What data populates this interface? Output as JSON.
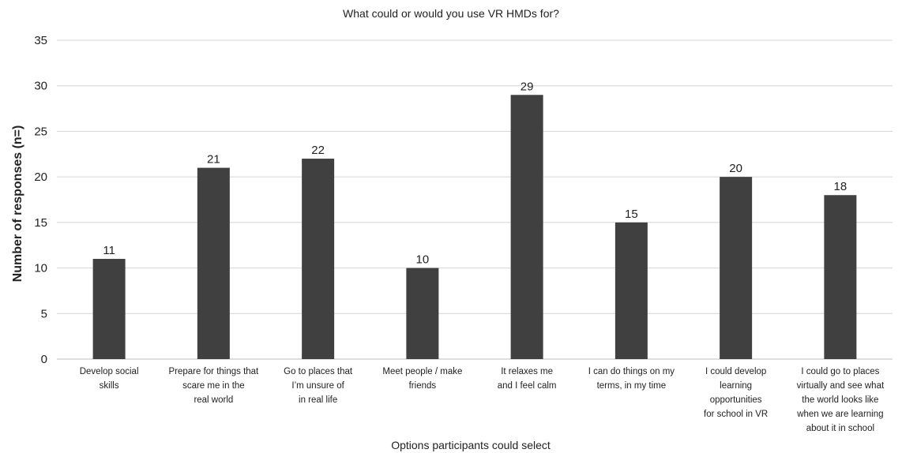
{
  "chart_data": {
    "type": "bar",
    "title": "What could or would you use VR HMDs for?",
    "xlabel": "Options participants could select",
    "ylabel": "Number of responses (n=)",
    "ylim": [
      0,
      35
    ],
    "yticks": [
      0,
      5,
      10,
      15,
      20,
      25,
      30,
      35
    ],
    "grid": true,
    "legend": "none",
    "bar_color": "#404040",
    "categories": [
      [
        "Develop social",
        "skills"
      ],
      [
        "Prepare for things that",
        "scare me in the",
        "real world"
      ],
      [
        "Go to places that",
        "I’m unsure of",
        "in real life"
      ],
      [
        "Meet people / make",
        "friends"
      ],
      [
        "It relaxes me",
        "and I feel calm"
      ],
      [
        "I can do things on my",
        "terms, in my time"
      ],
      [
        "I could develop",
        "learning",
        "opportunities",
        "for school in VR"
      ],
      [
        "I could go to places",
        "virtually and see what",
        "the world looks like",
        "when we are learning",
        "about it in school"
      ]
    ],
    "values": [
      11,
      21,
      22,
      10,
      29,
      15,
      20,
      18
    ]
  }
}
